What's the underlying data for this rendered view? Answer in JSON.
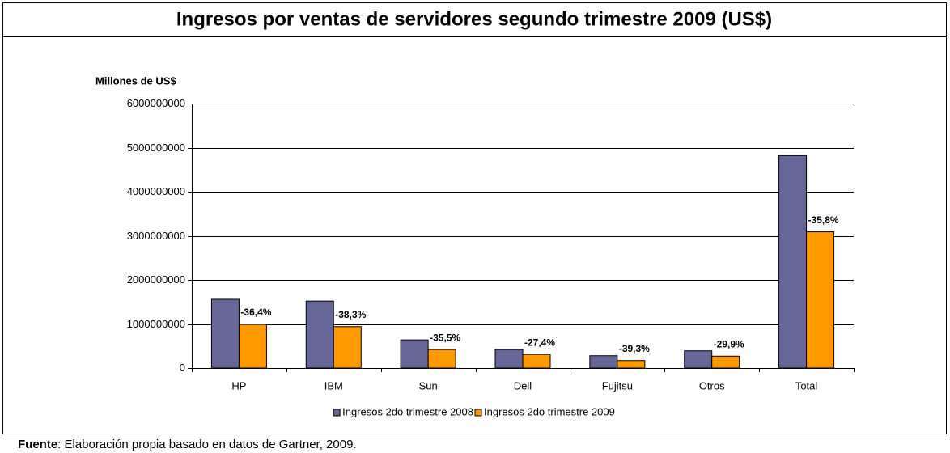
{
  "chart_data": {
    "type": "bar",
    "title": "Ingresos por ventas de servidores segundo trimestre 2009 (US$)",
    "y_label": "Millones de US$",
    "categories": [
      "HP",
      "IBM",
      "Sun",
      "Dell",
      "Fujitsu",
      "Otros",
      "Total"
    ],
    "series": [
      {
        "name": "Ingresos 2do trimestre 2008",
        "color": "#666699",
        "values": [
          1560000000,
          1520000000,
          640000000,
          420000000,
          280000000,
          390000000,
          4820000000
        ]
      },
      {
        "name": "Ingresos 2do trimestre 2009",
        "color": "#ff9900",
        "values": [
          990000000,
          940000000,
          420000000,
          310000000,
          170000000,
          270000000,
          3090000000
        ]
      }
    ],
    "change_labels": [
      "-36,4%",
      "-38,3%",
      "-35,5%",
      "-27,4%",
      "-39,3%",
      "-29,9%",
      "-35,8%"
    ],
    "ylim": [
      0,
      6000000000
    ],
    "yticks": [
      0,
      1000000000,
      2000000000,
      3000000000,
      4000000000,
      5000000000,
      6000000000
    ],
    "grid": true,
    "legend": "bottom",
    "source_label": "Fuente",
    "source_text": ": Elaboración propia basado en datos de Gartner, 2009."
  }
}
